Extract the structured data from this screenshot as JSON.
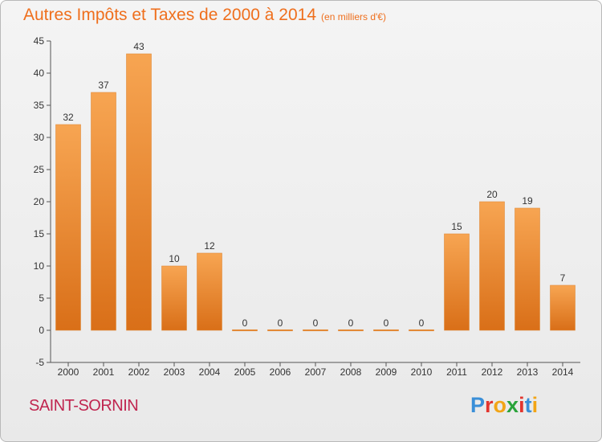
{
  "chart_title": "Autres Impôts et Taxes de 2000 à 2014",
  "chart_unit": "(en milliers d'€)",
  "commune": "SAINT-SORNIN",
  "logo_text": "Proxiti",
  "colors": {
    "title": "#ef6f1d",
    "commune": "#c02650",
    "bar_light": "#f7a552",
    "bar_dark": "#d96f18",
    "logo": [
      "#3a8fd8",
      "#e2352e",
      "#f2a516",
      "#2aa33a",
      "#e2352e",
      "#3a8fd8",
      "#f2a516"
    ]
  },
  "chart_data": {
    "type": "bar",
    "categories": [
      "2000",
      "2001",
      "2002",
      "2003",
      "2004",
      "2005",
      "2006",
      "2007",
      "2008",
      "2009",
      "2010",
      "2011",
      "2012",
      "2013",
      "2014"
    ],
    "values": [
      32,
      37,
      43,
      10,
      12,
      0,
      0,
      0,
      0,
      0,
      0,
      15,
      20,
      19,
      7
    ],
    "data_labels": [
      "32",
      "37",
      "43",
      "10",
      "12",
      "0",
      "0",
      "0",
      "0",
      "0",
      "0",
      "15",
      "20",
      "19",
      "7"
    ],
    "ylim": [
      -5,
      45
    ],
    "yticks": [
      -5,
      0,
      5,
      10,
      15,
      20,
      25,
      30,
      35,
      40,
      45
    ],
    "title": "Autres Impôts et Taxes de 2000 à 2014",
    "xlabel": "",
    "ylabel": "",
    "grid": false,
    "legend": "none"
  }
}
